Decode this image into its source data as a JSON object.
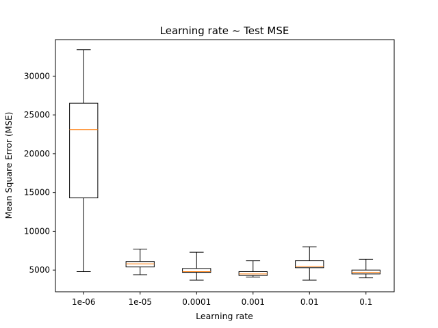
{
  "chart_data": {
    "type": "box",
    "title": "Learning rate ~ Test MSE",
    "xlabel": "Learning rate",
    "ylabel": "Mean Square Error (MSE)",
    "ylim": [
      2200,
      34700
    ],
    "yticks": [
      5000,
      10000,
      15000,
      20000,
      25000,
      30000
    ],
    "ytick_labels": [
      "5000",
      "10000",
      "15000",
      "20000",
      "25000",
      "30000"
    ],
    "categories": [
      "1e-06",
      "1e-05",
      "0.0001",
      "0.001",
      "0.01",
      "0.1"
    ],
    "boxes": [
      {
        "whislo": 4800,
        "q1": 14300,
        "med": 23100,
        "q3": 26500,
        "whishi": 33400
      },
      {
        "whislo": 4400,
        "q1": 5400,
        "med": 5800,
        "q3": 6100,
        "whishi": 7700
      },
      {
        "whislo": 3700,
        "q1": 4700,
        "med": 4800,
        "q3": 5200,
        "whishi": 7300
      },
      {
        "whislo": 4100,
        "q1": 4300,
        "med": 4500,
        "q3": 4800,
        "whishi": 6200
      },
      {
        "whislo": 3700,
        "q1": 5300,
        "med": 5500,
        "q3": 6200,
        "whishi": 8000
      },
      {
        "whislo": 4000,
        "q1": 4500,
        "med": 4700,
        "q3": 5000,
        "whishi": 6400
      }
    ],
    "grid": false,
    "colors": {
      "box": "#000000",
      "median": "#ff7f0e",
      "background": "#ffffff"
    }
  }
}
